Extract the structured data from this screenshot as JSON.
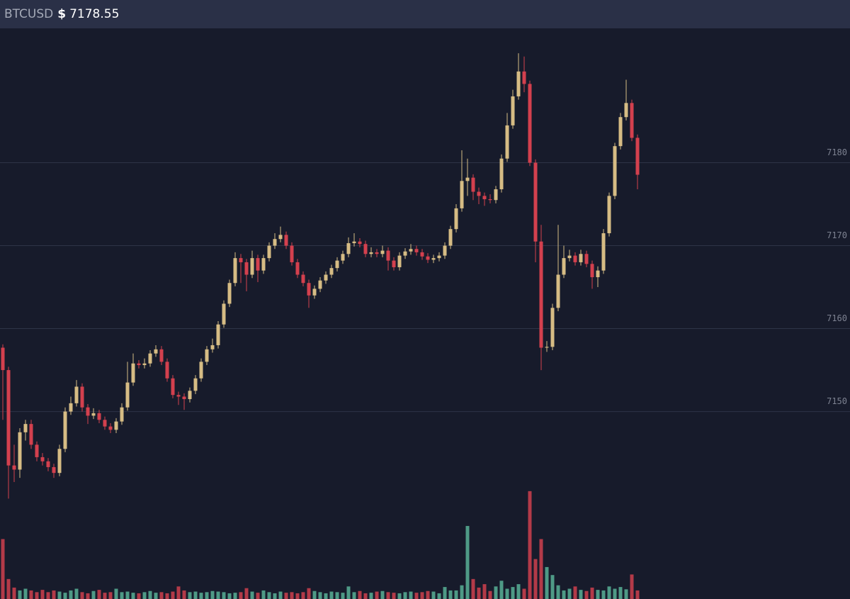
{
  "header": {
    "symbol": "BTCUSD",
    "currency": "$",
    "price": "7178.55"
  },
  "chart_data": {
    "type": "candlestick",
    "up_color": "#d6bc84",
    "down_color": "#d3404e",
    "volume_up_color": "#4e9a86",
    "volume_down_color": "#b33a48",
    "grid": true,
    "ylim": [
      7127.4,
      7196.2
    ],
    "yticks": [
      7150,
      7160,
      7170,
      7180
    ],
    "y2lim": [
      0,
      100
    ],
    "ohlc": [
      [
        7157.7,
        7158.1,
        7149.0,
        7155.0
      ],
      [
        7155.0,
        7155.4,
        7139.5,
        7143.5
      ],
      [
        7143.5,
        7146.0,
        7141.5,
        7143.0
      ],
      [
        7143.0,
        7148.0,
        7142.0,
        7147.5
      ],
      [
        7147.5,
        7149.0,
        7146.5,
        7148.5
      ],
      [
        7148.5,
        7149.0,
        7145.5,
        7146.0
      ],
      [
        7146.0,
        7146.4,
        7144.0,
        7144.5
      ],
      [
        7144.5,
        7145.0,
        7143.5,
        7144.0
      ],
      [
        7144.0,
        7144.4,
        7142.8,
        7143.3
      ],
      [
        7143.3,
        7143.7,
        7142.0,
        7142.6
      ],
      [
        7142.6,
        7146.0,
        7142.2,
        7145.5
      ],
      [
        7145.5,
        7150.5,
        7145.1,
        7150.0
      ],
      [
        7150.0,
        7151.8,
        7149.6,
        7151.0
      ],
      [
        7151.0,
        7153.8,
        7150.6,
        7153.0
      ],
      [
        7153.0,
        7153.4,
        7150.0,
        7150.5
      ],
      [
        7150.5,
        7150.9,
        7148.5,
        7149.5
      ],
      [
        7149.5,
        7150.4,
        7149.1,
        7149.8
      ],
      [
        7149.8,
        7150.2,
        7148.6,
        7149.0
      ],
      [
        7149.0,
        7149.4,
        7147.8,
        7148.2
      ],
      [
        7148.2,
        7148.6,
        7147.4,
        7147.8
      ],
      [
        7147.8,
        7149.2,
        7147.4,
        7148.8
      ],
      [
        7148.8,
        7151.0,
        7148.4,
        7150.5
      ],
      [
        7150.5,
        7156.0,
        7150.1,
        7153.5
      ],
      [
        7153.5,
        7157.0,
        7153.1,
        7155.8
      ],
      [
        7155.8,
        7156.2,
        7155.2,
        7155.6
      ],
      [
        7155.6,
        7156.4,
        7155.2,
        7155.8
      ],
      [
        7155.8,
        7157.4,
        7155.4,
        7157.0
      ],
      [
        7157.0,
        7158.0,
        7156.6,
        7157.5
      ],
      [
        7157.5,
        7157.9,
        7155.6,
        7156.0
      ],
      [
        7156.0,
        7156.4,
        7153.6,
        7154.0
      ],
      [
        7154.0,
        7154.4,
        7151.6,
        7152.0
      ],
      [
        7152.0,
        7152.4,
        7150.8,
        7151.8
      ],
      [
        7151.8,
        7152.2,
        7150.2,
        7151.5
      ],
      [
        7151.5,
        7152.9,
        7151.1,
        7152.5
      ],
      [
        7152.5,
        7154.4,
        7152.1,
        7154.0
      ],
      [
        7154.0,
        7156.4,
        7153.6,
        7156.0
      ],
      [
        7156.0,
        7157.9,
        7155.6,
        7157.5
      ],
      [
        7157.5,
        7158.8,
        7157.1,
        7158.0
      ],
      [
        7158.0,
        7160.9,
        7157.6,
        7160.5
      ],
      [
        7160.5,
        7163.4,
        7160.1,
        7163.0
      ],
      [
        7163.0,
        7165.9,
        7162.6,
        7165.5
      ],
      [
        7165.5,
        7169.2,
        7165.1,
        7168.5
      ],
      [
        7168.5,
        7169.0,
        7165.5,
        7168.0
      ],
      [
        7168.0,
        7168.4,
        7164.5,
        7166.5
      ],
      [
        7166.5,
        7169.4,
        7166.1,
        7168.5
      ],
      [
        7168.5,
        7168.9,
        7165.6,
        7167.0
      ],
      [
        7167.0,
        7168.9,
        7166.6,
        7168.5
      ],
      [
        7168.5,
        7170.4,
        7168.1,
        7170.0
      ],
      [
        7170.0,
        7171.5,
        7169.6,
        7170.8
      ],
      [
        7170.8,
        7172.3,
        7170.4,
        7171.3
      ],
      [
        7171.3,
        7171.7,
        7169.6,
        7170.0
      ],
      [
        7170.0,
        7170.4,
        7167.6,
        7168.0
      ],
      [
        7168.0,
        7168.4,
        7166.1,
        7166.5
      ],
      [
        7166.5,
        7166.9,
        7165.1,
        7165.5
      ],
      [
        7165.5,
        7165.9,
        7162.5,
        7164.0
      ],
      [
        7164.0,
        7165.2,
        7163.6,
        7164.8
      ],
      [
        7164.8,
        7166.2,
        7164.4,
        7165.8
      ],
      [
        7165.8,
        7166.9,
        7165.4,
        7166.5
      ],
      [
        7166.5,
        7167.7,
        7166.1,
        7167.3
      ],
      [
        7167.3,
        7168.6,
        7166.9,
        7168.2
      ],
      [
        7168.2,
        7169.4,
        7167.8,
        7169.0
      ],
      [
        7169.0,
        7171.0,
        7168.6,
        7170.3
      ],
      [
        7170.3,
        7171.5,
        7169.9,
        7170.5
      ],
      [
        7170.5,
        7170.9,
        7169.8,
        7170.2
      ],
      [
        7170.2,
        7170.6,
        7168.6,
        7169.0
      ],
      [
        7169.0,
        7169.8,
        7168.6,
        7169.2
      ],
      [
        7169.2,
        7169.6,
        7168.6,
        7169.0
      ],
      [
        7169.0,
        7170.0,
        7168.6,
        7169.4
      ],
      [
        7169.4,
        7169.8,
        7167.0,
        7168.2
      ],
      [
        7168.2,
        7168.6,
        7167.0,
        7167.4
      ],
      [
        7167.4,
        7169.2,
        7167.0,
        7168.8
      ],
      [
        7168.8,
        7169.7,
        7168.4,
        7169.3
      ],
      [
        7169.3,
        7170.2,
        7168.9,
        7169.6
      ],
      [
        7169.6,
        7170.0,
        7168.8,
        7169.2
      ],
      [
        7169.2,
        7169.6,
        7168.3,
        7168.7
      ],
      [
        7168.7,
        7169.1,
        7167.9,
        7168.3
      ],
      [
        7168.3,
        7168.9,
        7167.9,
        7168.5
      ],
      [
        7168.5,
        7169.2,
        7168.1,
        7168.8
      ],
      [
        7168.8,
        7170.4,
        7168.4,
        7170.0
      ],
      [
        7170.0,
        7172.4,
        7169.6,
        7172.0
      ],
      [
        7172.0,
        7175.0,
        7171.6,
        7174.5
      ],
      [
        7174.5,
        7181.5,
        7174.1,
        7177.8
      ],
      [
        7177.8,
        7180.5,
        7176.0,
        7178.2
      ],
      [
        7178.2,
        7178.6,
        7175.5,
        7176.5
      ],
      [
        7176.5,
        7177.0,
        7175.0,
        7176.0
      ],
      [
        7176.0,
        7176.4,
        7174.8,
        7175.6
      ],
      [
        7175.6,
        7176.2,
        7175.1,
        7175.5
      ],
      [
        7175.5,
        7177.2,
        7175.1,
        7176.8
      ],
      [
        7176.8,
        7181.0,
        7176.4,
        7180.5
      ],
      [
        7180.5,
        7186.0,
        7180.1,
        7184.5
      ],
      [
        7184.5,
        7188.8,
        7184.1,
        7188.0
      ],
      [
        7188.0,
        7193.2,
        7187.6,
        7191.0
      ],
      [
        7191.0,
        7192.8,
        7188.5,
        7189.5
      ],
      [
        7189.5,
        7189.9,
        7179.6,
        7180.0
      ],
      [
        7180.0,
        7180.4,
        7168.0,
        7170.5
      ],
      [
        7170.5,
        7172.5,
        7155.0,
        7157.7
      ],
      [
        7157.7,
        7158.5,
        7157.2,
        7157.8
      ],
      [
        7157.8,
        7163.0,
        7157.4,
        7162.5
      ],
      [
        7162.5,
        7172.5,
        7162.1,
        7166.5
      ],
      [
        7166.5,
        7170.0,
        7166.1,
        7168.5
      ],
      [
        7168.5,
        7169.5,
        7168.1,
        7168.8
      ],
      [
        7168.8,
        7169.2,
        7167.6,
        7168.0
      ],
      [
        7168.0,
        7169.5,
        7167.6,
        7169.0
      ],
      [
        7169.0,
        7169.4,
        7167.4,
        7167.8
      ],
      [
        7167.8,
        7168.2,
        7164.8,
        7166.2
      ],
      [
        7166.2,
        7167.5,
        7165.0,
        7167.0
      ],
      [
        7167.0,
        7172.0,
        7166.6,
        7171.5
      ],
      [
        7171.5,
        7176.4,
        7171.1,
        7176.0
      ],
      [
        7176.0,
        7182.4,
        7175.6,
        7182.0
      ],
      [
        7182.0,
        7186.0,
        7181.6,
        7185.5
      ],
      [
        7185.5,
        7190.0,
        7185.1,
        7187.2
      ],
      [
        7187.2,
        7187.6,
        7182.6,
        7183.0
      ],
      [
        7183.0,
        7183.4,
        7176.8,
        7178.55
      ]
    ],
    "volume": [
      10.5,
      3.5,
      2,
      1.5,
      1.8,
      1.5,
      1.2,
      1.6,
      1.2,
      1.5,
      1.3,
      1.1,
      1.5,
      1.8,
      1.2,
      1,
      1.4,
      1.6,
      1.1,
      1.2,
      1.8,
      1.2,
      1.3,
      1.1,
      1,
      1.2,
      1.4,
      1.1,
      1.2,
      1,
      1.3,
      2.2,
      1.5,
      1.2,
      1.3,
      1.1,
      1.2,
      1.4,
      1.3,
      1.2,
      1,
      1.1,
      1.2,
      1.9,
      1.3,
      1.1,
      1.5,
      1.2,
      1,
      1.3,
      1.1,
      1.2,
      1,
      1.2,
      1.9,
      1.4,
      1.2,
      1,
      1.3,
      1.2,
      1.1,
      2.2,
      1.2,
      1.4,
      1,
      1.1,
      1.3,
      1.4,
      1.2,
      1.1,
      1,
      1.2,
      1.3,
      1.1,
      1.2,
      1.4,
      1.3,
      1,
      2.1,
      1.5,
      1.5,
      2.4,
      12.8,
      3.5,
      2,
      2.6,
      1.4,
      2.2,
      3.2,
      1.8,
      2.1,
      2.6,
      1.8,
      18.9,
      7,
      10.5,
      5.6,
      4.2,
      2.4,
      1.5,
      1.8,
      2.2,
      1.6,
      1.4,
      2,
      1.6,
      1.5,
      2.2,
      1.8,
      2.1,
      1.7,
      4.3,
      1.5
    ]
  }
}
